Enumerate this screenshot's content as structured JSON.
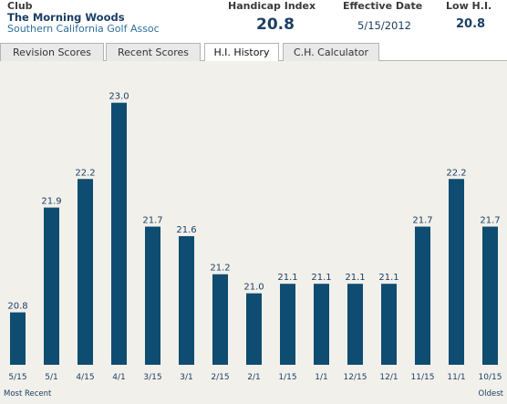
{
  "header": {
    "club_label": "Club",
    "club_name": "The Morning Woods",
    "club_assoc": "Southern California Golf Assoc",
    "hi_label": "Handicap Index",
    "hi_value": "20.8",
    "eff_label": "Effective Date",
    "eff_value": "5/15/2012",
    "low_label": "Low H.I.",
    "low_value": "20.8"
  },
  "tabs": [
    {
      "label": "Revision Scores",
      "active": false
    },
    {
      "label": "Recent Scores",
      "active": false
    },
    {
      "label": "H.I. History",
      "active": true
    },
    {
      "label": "C.H. Calculator",
      "active": false
    }
  ],
  "chart": {
    "left_end_label": "Most Recent",
    "right_end_label": "Oldest"
  },
  "chart_data": {
    "type": "bar",
    "categories": [
      "5/15",
      "5/1",
      "4/15",
      "4/1",
      "3/15",
      "3/1",
      "2/15",
      "2/1",
      "1/15",
      "1/1",
      "12/15",
      "12/1",
      "11/15",
      "11/1",
      "10/15"
    ],
    "values": [
      20.8,
      21.9,
      22.2,
      23.0,
      21.7,
      21.6,
      21.2,
      21.0,
      21.1,
      21.1,
      21.1,
      21.1,
      21.7,
      22.2,
      21.7
    ],
    "value_labels": [
      "20.8",
      "21.9",
      "22.2",
      "23.0",
      "21.7",
      "21.6",
      "21.2",
      "21.0",
      "21.1",
      "21.1",
      "21.1",
      "21.1",
      "21.7",
      "22.2",
      "21.7"
    ],
    "ylim": [
      20.25,
      23.15
    ],
    "grid": false,
    "colors": {
      "bar": "#0f4c71",
      "background": "#f1f0ea"
    }
  }
}
